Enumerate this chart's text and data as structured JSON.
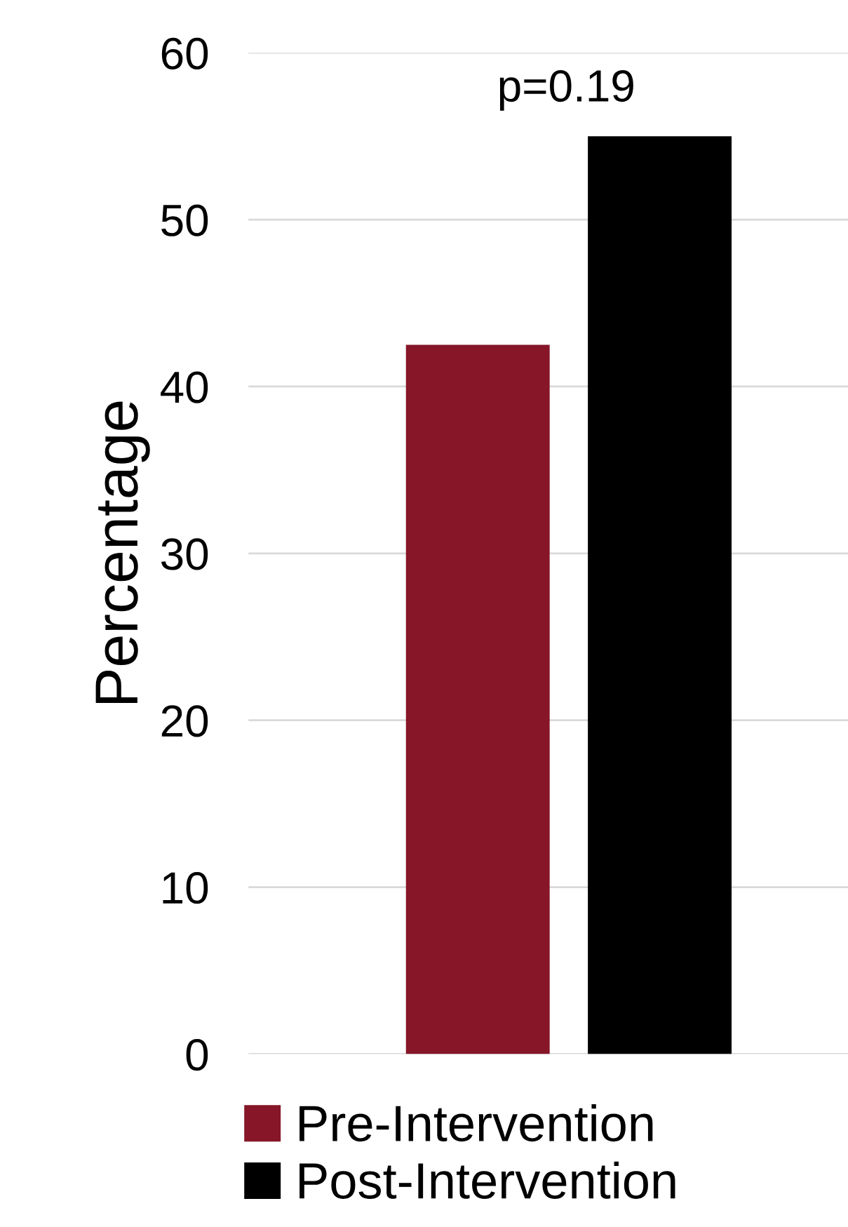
{
  "chart_data": {
    "type": "bar",
    "ylabel": "Percentage",
    "categories": [
      null
    ],
    "series": [
      {
        "name": "Pre-Intervention",
        "color": "#861628",
        "values": [
          42.5
        ]
      },
      {
        "name": "Post-Intervention",
        "color": "#000000",
        "values": [
          55
        ]
      }
    ],
    "ylim": [
      0,
      60
    ],
    "yticks": [
      0,
      10,
      20,
      30,
      40,
      50,
      60
    ],
    "grid": "y",
    "legend": "bottom",
    "annotations": [
      "p=0.19"
    ]
  }
}
